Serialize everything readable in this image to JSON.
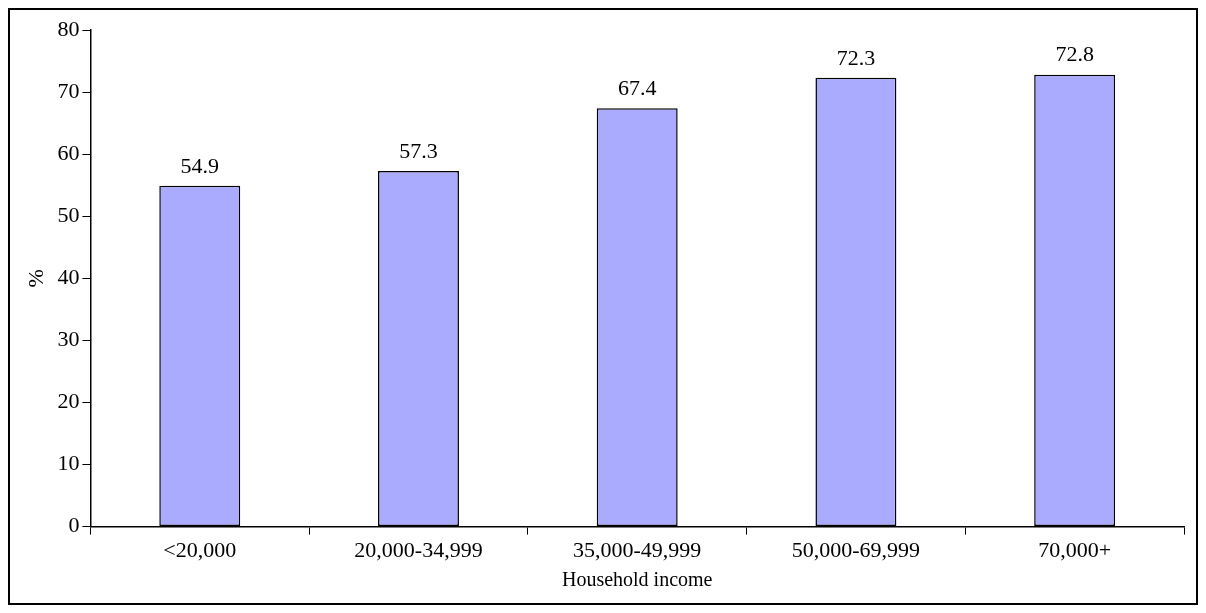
{
  "chart_data": {
    "type": "bar",
    "xlabel": "Household income",
    "ylabel": "%",
    "categories": [
      "<20,000",
      "20,000-34,999",
      "35,000-49,999",
      "50,000-69,999",
      "70,000+"
    ],
    "values": [
      54.9,
      57.3,
      67.4,
      72.3,
      72.8
    ],
    "color": "#aaaaff",
    "ylim": [
      0,
      80
    ],
    "yticks": [
      0,
      10,
      20,
      30,
      40,
      50,
      60,
      70,
      80
    ],
    "grid": false,
    "legend": false,
    "data_labels": true
  }
}
